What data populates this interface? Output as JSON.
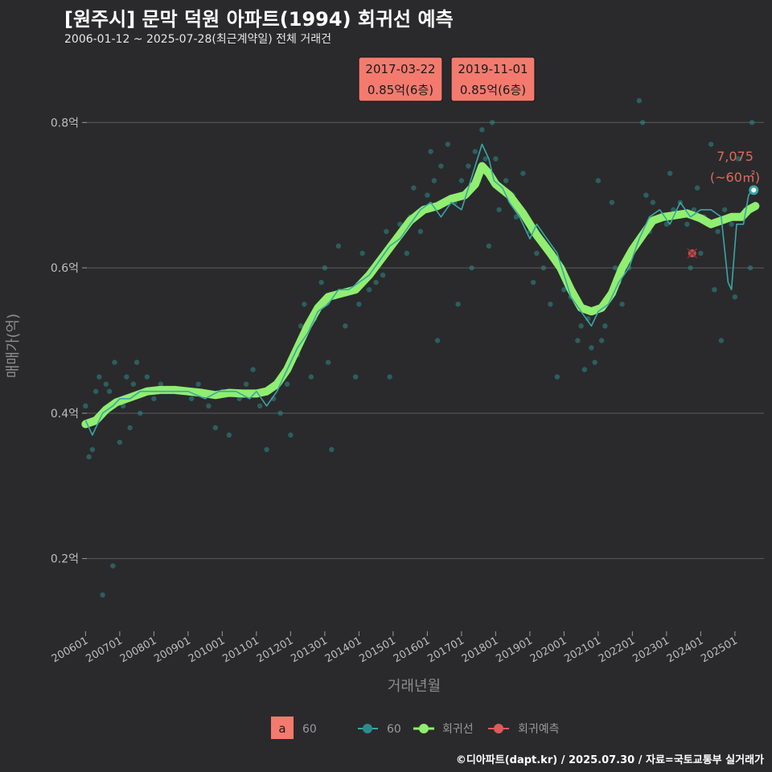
{
  "header": {
    "title": "[원주시] 문막 덕원 아파트(1994) 회귀선 예측",
    "subtitle": "2006-01-12 ~ 2025-07-28(최근계약일) 전체 거래건",
    "caption": "©디아파트(dapt.kr) / 2025.07.30 / 자료=국토교통부 실거래가"
  },
  "colors": {
    "background": "#2a2a2c",
    "grid": "#5c5c5c",
    "scatter": "#2e8b8b",
    "line": "#3aa6a6",
    "regression": "#90ee70",
    "prediction": "#e05a5a",
    "annotation_bg": "#f47a6e"
  },
  "chart_data": {
    "type": "line",
    "xlabel": "거래년월",
    "ylabel": "매매가(억)",
    "xlim": [
      2005.85,
      2025.85
    ],
    "ylim": [
      0.1,
      0.88
    ],
    "x_ticks": [
      {
        "value": 2006.0,
        "label": "200601"
      },
      {
        "value": 2007.0,
        "label": "200701"
      },
      {
        "value": 2008.0,
        "label": "200801"
      },
      {
        "value": 2009.0,
        "label": "200901"
      },
      {
        "value": 2010.0,
        "label": "201001"
      },
      {
        "value": 2011.0,
        "label": "201101"
      },
      {
        "value": 2012.0,
        "label": "201201"
      },
      {
        "value": 2013.0,
        "label": "201301"
      },
      {
        "value": 2014.0,
        "label": "201401"
      },
      {
        "value": 2015.0,
        "label": "201501"
      },
      {
        "value": 2016.0,
        "label": "201601"
      },
      {
        "value": 2017.0,
        "label": "201701"
      },
      {
        "value": 2018.0,
        "label": "201801"
      },
      {
        "value": 2019.0,
        "label": "201901"
      },
      {
        "value": 2020.0,
        "label": "202001"
      },
      {
        "value": 2021.0,
        "label": "202101"
      },
      {
        "value": 2022.0,
        "label": "202201"
      },
      {
        "value": 2023.0,
        "label": "202301"
      },
      {
        "value": 2024.0,
        "label": "202401"
      },
      {
        "value": 2025.0,
        "label": "202501"
      }
    ],
    "y_ticks": [
      {
        "value": 0.2,
        "label": "0.2억"
      },
      {
        "value": 0.4,
        "label": "0.4억"
      },
      {
        "value": 0.6,
        "label": "0.6억"
      },
      {
        "value": 0.8,
        "label": "0.8억"
      }
    ],
    "series": [
      {
        "name": "60",
        "role": "monthly-average",
        "points": [
          [
            2006.0,
            0.39
          ],
          [
            2006.2,
            0.37
          ],
          [
            2006.5,
            0.4
          ],
          [
            2006.8,
            0.41
          ],
          [
            2007.0,
            0.42
          ],
          [
            2007.3,
            0.42
          ],
          [
            2007.6,
            0.43
          ],
          [
            2008.0,
            0.43
          ],
          [
            2008.5,
            0.43
          ],
          [
            2009.0,
            0.43
          ],
          [
            2009.5,
            0.42
          ],
          [
            2009.9,
            0.43
          ],
          [
            2010.4,
            0.43
          ],
          [
            2010.8,
            0.42
          ],
          [
            2011.0,
            0.43
          ],
          [
            2011.3,
            0.41
          ],
          [
            2011.6,
            0.43
          ],
          [
            2011.9,
            0.46
          ],
          [
            2012.2,
            0.49
          ],
          [
            2012.5,
            0.51
          ],
          [
            2012.8,
            0.54
          ],
          [
            2013.1,
            0.55
          ],
          [
            2013.4,
            0.57
          ],
          [
            2013.7,
            0.57
          ],
          [
            2014.0,
            0.58
          ],
          [
            2014.3,
            0.59
          ],
          [
            2014.6,
            0.61
          ],
          [
            2014.9,
            0.63
          ],
          [
            2015.2,
            0.64
          ],
          [
            2015.5,
            0.66
          ],
          [
            2015.8,
            0.68
          ],
          [
            2016.1,
            0.69
          ],
          [
            2016.4,
            0.67
          ],
          [
            2016.7,
            0.69
          ],
          [
            2017.0,
            0.68
          ],
          [
            2017.2,
            0.71
          ],
          [
            2017.4,
            0.74
          ],
          [
            2017.6,
            0.77
          ],
          [
            2017.8,
            0.75
          ],
          [
            2017.95,
            0.72
          ],
          [
            2018.2,
            0.71
          ],
          [
            2018.4,
            0.69
          ],
          [
            2018.7,
            0.67
          ],
          [
            2019.0,
            0.64
          ],
          [
            2019.2,
            0.66
          ],
          [
            2019.5,
            0.64
          ],
          [
            2019.8,
            0.62
          ],
          [
            2020.0,
            0.59
          ],
          [
            2020.2,
            0.56
          ],
          [
            2020.5,
            0.54
          ],
          [
            2020.8,
            0.52
          ],
          [
            2021.0,
            0.54
          ],
          [
            2021.3,
            0.55
          ],
          [
            2021.6,
            0.58
          ],
          [
            2021.9,
            0.6
          ],
          [
            2022.2,
            0.64
          ],
          [
            2022.5,
            0.67
          ],
          [
            2022.8,
            0.68
          ],
          [
            2023.1,
            0.66
          ],
          [
            2023.4,
            0.69
          ],
          [
            2023.7,
            0.67
          ],
          [
            2024.0,
            0.68
          ],
          [
            2024.3,
            0.68
          ],
          [
            2024.6,
            0.67
          ],
          [
            2024.8,
            0.58
          ],
          [
            2024.9,
            0.57
          ],
          [
            2025.05,
            0.66
          ],
          [
            2025.25,
            0.66
          ],
          [
            2025.4,
            0.7
          ],
          [
            2025.55,
            0.71
          ]
        ]
      },
      {
        "name": "회귀선",
        "role": "regression",
        "points": [
          [
            2006.0,
            0.385
          ],
          [
            2006.3,
            0.39
          ],
          [
            2006.6,
            0.405
          ],
          [
            2006.9,
            0.415
          ],
          [
            2007.2,
            0.42
          ],
          [
            2007.5,
            0.425
          ],
          [
            2007.8,
            0.43
          ],
          [
            2008.2,
            0.432
          ],
          [
            2008.6,
            0.432
          ],
          [
            2009.0,
            0.43
          ],
          [
            2009.4,
            0.428
          ],
          [
            2009.8,
            0.425
          ],
          [
            2010.2,
            0.428
          ],
          [
            2010.6,
            0.427
          ],
          [
            2011.0,
            0.427
          ],
          [
            2011.3,
            0.43
          ],
          [
            2011.6,
            0.44
          ],
          [
            2011.9,
            0.46
          ],
          [
            2012.2,
            0.49
          ],
          [
            2012.5,
            0.52
          ],
          [
            2012.8,
            0.545
          ],
          [
            2013.1,
            0.56
          ],
          [
            2013.5,
            0.565
          ],
          [
            2013.9,
            0.57
          ],
          [
            2014.3,
            0.59
          ],
          [
            2014.7,
            0.615
          ],
          [
            2015.1,
            0.64
          ],
          [
            2015.5,
            0.665
          ],
          [
            2015.9,
            0.68
          ],
          [
            2016.3,
            0.685
          ],
          [
            2016.7,
            0.695
          ],
          [
            2017.1,
            0.7
          ],
          [
            2017.4,
            0.715
          ],
          [
            2017.6,
            0.74
          ],
          [
            2017.8,
            0.73
          ],
          [
            2018.0,
            0.715
          ],
          [
            2018.4,
            0.7
          ],
          [
            2018.8,
            0.675
          ],
          [
            2019.2,
            0.645
          ],
          [
            2019.6,
            0.62
          ],
          [
            2019.9,
            0.6
          ],
          [
            2020.2,
            0.57
          ],
          [
            2020.5,
            0.545
          ],
          [
            2020.8,
            0.54
          ],
          [
            2021.1,
            0.545
          ],
          [
            2021.4,
            0.565
          ],
          [
            2021.7,
            0.6
          ],
          [
            2022.0,
            0.625
          ],
          [
            2022.3,
            0.645
          ],
          [
            2022.6,
            0.665
          ],
          [
            2022.9,
            0.67
          ],
          [
            2023.2,
            0.672
          ],
          [
            2023.6,
            0.675
          ],
          [
            2024.0,
            0.668
          ],
          [
            2024.3,
            0.66
          ],
          [
            2024.6,
            0.665
          ],
          [
            2024.9,
            0.67
          ],
          [
            2025.2,
            0.67
          ],
          [
            2025.4,
            0.68
          ],
          [
            2025.6,
            0.685
          ]
        ]
      }
    ],
    "scatter": [
      [
        2006.0,
        0.41
      ],
      [
        2006.1,
        0.34
      ],
      [
        2006.2,
        0.35
      ],
      [
        2006.3,
        0.43
      ],
      [
        2006.4,
        0.45
      ],
      [
        2006.5,
        0.15
      ],
      [
        2006.6,
        0.44
      ],
      [
        2006.7,
        0.43
      ],
      [
        2006.8,
        0.19
      ],
      [
        2006.85,
        0.47
      ],
      [
        2007.0,
        0.36
      ],
      [
        2007.1,
        0.41
      ],
      [
        2007.2,
        0.45
      ],
      [
        2007.3,
        0.38
      ],
      [
        2007.4,
        0.44
      ],
      [
        2007.5,
        0.47
      ],
      [
        2007.6,
        0.4
      ],
      [
        2007.8,
        0.45
      ],
      [
        2008.0,
        0.42
      ],
      [
        2008.2,
        0.44
      ],
      [
        2008.5,
        0.43
      ],
      [
        2008.8,
        0.43
      ],
      [
        2009.1,
        0.42
      ],
      [
        2009.3,
        0.44
      ],
      [
        2009.6,
        0.41
      ],
      [
        2009.8,
        0.38
      ],
      [
        2010.0,
        0.43
      ],
      [
        2010.2,
        0.37
      ],
      [
        2010.5,
        0.42
      ],
      [
        2010.7,
        0.44
      ],
      [
        2010.9,
        0.46
      ],
      [
        2011.1,
        0.41
      ],
      [
        2011.3,
        0.35
      ],
      [
        2011.5,
        0.42
      ],
      [
        2011.7,
        0.4
      ],
      [
        2011.9,
        0.44
      ],
      [
        2012.0,
        0.37
      ],
      [
        2012.2,
        0.48
      ],
      [
        2012.3,
        0.52
      ],
      [
        2012.4,
        0.55
      ],
      [
        2012.6,
        0.45
      ],
      [
        2012.7,
        0.53
      ],
      [
        2012.9,
        0.58
      ],
      [
        2013.0,
        0.6
      ],
      [
        2013.1,
        0.47
      ],
      [
        2013.2,
        0.35
      ],
      [
        2013.3,
        0.56
      ],
      [
        2013.4,
        0.63
      ],
      [
        2013.6,
        0.52
      ],
      [
        2013.8,
        0.57
      ],
      [
        2013.9,
        0.45
      ],
      [
        2014.0,
        0.55
      ],
      [
        2014.1,
        0.62
      ],
      [
        2014.3,
        0.57
      ],
      [
        2014.5,
        0.58
      ],
      [
        2014.7,
        0.59
      ],
      [
        2014.8,
        0.65
      ],
      [
        2014.9,
        0.45
      ],
      [
        2015.1,
        0.64
      ],
      [
        2015.2,
        0.66
      ],
      [
        2015.4,
        0.62
      ],
      [
        2015.5,
        0.67
      ],
      [
        2015.6,
        0.71
      ],
      [
        2015.8,
        0.65
      ],
      [
        2016.0,
        0.7
      ],
      [
        2016.1,
        0.76
      ],
      [
        2016.2,
        0.72
      ],
      [
        2016.3,
        0.5
      ],
      [
        2016.4,
        0.74
      ],
      [
        2016.6,
        0.77
      ],
      [
        2016.8,
        0.69
      ],
      [
        2016.9,
        0.55
      ],
      [
        2017.0,
        0.72
      ],
      [
        2017.2,
        0.74
      ],
      [
        2017.3,
        0.6
      ],
      [
        2017.4,
        0.76
      ],
      [
        2017.5,
        0.72
      ],
      [
        2017.6,
        0.79
      ],
      [
        2017.7,
        0.75
      ],
      [
        2017.8,
        0.63
      ],
      [
        2017.9,
        0.8
      ],
      [
        2018.0,
        0.75
      ],
      [
        2018.1,
        0.68
      ],
      [
        2018.3,
        0.72
      ],
      [
        2018.5,
        0.7
      ],
      [
        2018.6,
        0.67
      ],
      [
        2018.8,
        0.73
      ],
      [
        2019.0,
        0.65
      ],
      [
        2019.1,
        0.58
      ],
      [
        2019.2,
        0.62
      ],
      [
        2019.4,
        0.6
      ],
      [
        2019.6,
        0.55
      ],
      [
        2019.8,
        0.45
      ],
      [
        2020.0,
        0.57
      ],
      [
        2020.2,
        0.56
      ],
      [
        2020.4,
        0.5
      ],
      [
        2020.5,
        0.52
      ],
      [
        2020.6,
        0.46
      ],
      [
        2020.7,
        0.53
      ],
      [
        2020.8,
        0.49
      ],
      [
        2020.9,
        0.47
      ],
      [
        2021.0,
        0.72
      ],
      [
        2021.1,
        0.5
      ],
      [
        2021.2,
        0.52
      ],
      [
        2021.3,
        0.56
      ],
      [
        2021.4,
        0.69
      ],
      [
        2021.5,
        0.6
      ],
      [
        2021.6,
        0.58
      ],
      [
        2021.7,
        0.55
      ],
      [
        2021.9,
        0.6
      ],
      [
        2022.0,
        0.62
      ],
      [
        2022.1,
        0.63
      ],
      [
        2022.2,
        0.83
      ],
      [
        2022.3,
        0.8
      ],
      [
        2022.4,
        0.7
      ],
      [
        2022.5,
        0.65
      ],
      [
        2022.6,
        0.69
      ],
      [
        2022.8,
        0.67
      ],
      [
        2023.0,
        0.66
      ],
      [
        2023.1,
        0.73
      ],
      [
        2023.2,
        0.68
      ],
      [
        2023.4,
        0.69
      ],
      [
        2023.6,
        0.66
      ],
      [
        2023.7,
        0.6
      ],
      [
        2023.8,
        0.68
      ],
      [
        2023.9,
        0.71
      ],
      [
        2024.0,
        0.62
      ],
      [
        2024.1,
        0.67
      ],
      [
        2024.3,
        0.77
      ],
      [
        2024.4,
        0.57
      ],
      [
        2024.5,
        0.65
      ],
      [
        2024.6,
        0.5
      ],
      [
        2024.7,
        0.68
      ],
      [
        2024.9,
        0.66
      ],
      [
        2025.0,
        0.56
      ],
      [
        2025.1,
        0.75
      ],
      [
        2025.3,
        0.68
      ],
      [
        2025.45,
        0.6
      ],
      [
        2025.5,
        0.8
      ]
    ],
    "prediction": {
      "x": 2023.75,
      "y": 0.62
    },
    "last_point": {
      "x": 2025.55,
      "y": 0.707
    },
    "annotations": [
      {
        "date": "2017-03-22",
        "value": "0.85억(6층)"
      },
      {
        "date": "2019-11-01",
        "value": "0.85억(6층)"
      }
    ],
    "last_label": {
      "price": "7,075",
      "area": "(~60㎡)"
    },
    "legend": {
      "fill_key": "a",
      "fill_label": "60",
      "line_label": "60",
      "regression_label": "회귀선",
      "prediction_label": "회귀예측"
    }
  }
}
